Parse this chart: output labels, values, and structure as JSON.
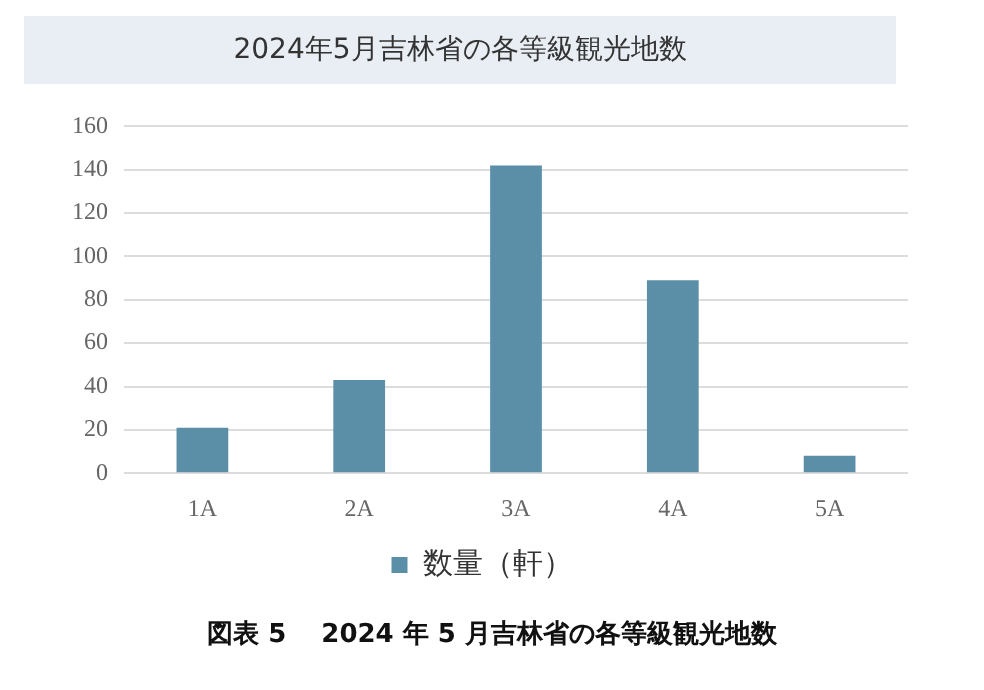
{
  "chart_data": {
    "type": "bar",
    "title": "2024年5月吉林省の各等級観光地数",
    "categories": [
      "1A",
      "2A",
      "3A",
      "4A",
      "5A"
    ],
    "series": [
      {
        "name": "数量（軒）",
        "color": "#5b8fa8",
        "values": [
          21,
          43,
          142,
          89,
          8
        ]
      }
    ],
    "ylim": [
      0,
      160
    ],
    "yticks": [
      0,
      20,
      40,
      60,
      80,
      100,
      120,
      140,
      160
    ],
    "grid": "y",
    "legend": "bottom",
    "annotations": [
      "図表 5　 2024 年 5 月吉林省の各等級観光地数"
    ]
  }
}
